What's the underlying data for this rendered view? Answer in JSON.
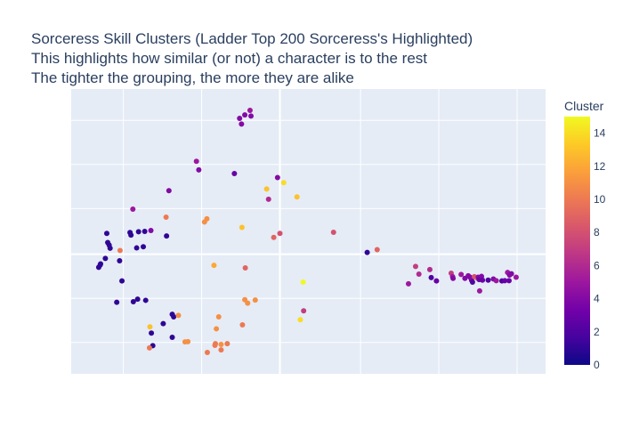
{
  "chart_data": {
    "type": "scatter",
    "title": "Sorceress Skill Clusters (Ladder Top 200 Sorceress's Highlighted)",
    "subtitle_lines": [
      "This highlights how similar (or not) a character is to the rest",
      "The tighter the grouping, the more they are alike"
    ],
    "xlabel": "",
    "ylabel": "",
    "xlim": [
      0,
      100
    ],
    "ylim": [
      0,
      100
    ],
    "grid": true,
    "background": "#e5ecf6",
    "colorbar": {
      "title": "Cluster",
      "min": 0,
      "max": 15,
      "ticks": [
        0,
        2,
        4,
        6,
        8,
        10,
        12,
        14
      ],
      "colorscale": [
        "#0d0887",
        "#46039f",
        "#7201a8",
        "#9c179e",
        "#bd3786",
        "#d8576b",
        "#ed7953",
        "#fb9f3a",
        "#fdca26",
        "#f0f921"
      ]
    },
    "points": [
      {
        "x": 37.7,
        "y": 92.5,
        "c": 5
      },
      {
        "x": 37.9,
        "y": 90.5,
        "c": 4
      },
      {
        "x": 36.6,
        "y": 90.9,
        "c": 4
      },
      {
        "x": 35.9,
        "y": 87.7,
        "c": 4
      },
      {
        "x": 35.5,
        "y": 89.7,
        "c": 4
      },
      {
        "x": 26.4,
        "y": 74.6,
        "c": 5
      },
      {
        "x": 26.9,
        "y": 71.6,
        "c": 4
      },
      {
        "x": 34.4,
        "y": 70.3,
        "c": 3
      },
      {
        "x": 43.5,
        "y": 68.9,
        "c": 4
      },
      {
        "x": 41.2,
        "y": 64.9,
        "c": 13
      },
      {
        "x": 44.8,
        "y": 67.1,
        "c": 14
      },
      {
        "x": 47.6,
        "y": 62.1,
        "c": 13
      },
      {
        "x": 41.6,
        "y": 61.3,
        "c": 6
      },
      {
        "x": 20.6,
        "y": 64.3,
        "c": 4
      },
      {
        "x": 13.0,
        "y": 57.8,
        "c": 5
      },
      {
        "x": 20.0,
        "y": 55.0,
        "c": 10
      },
      {
        "x": 28.6,
        "y": 54.4,
        "c": 11
      },
      {
        "x": 28.1,
        "y": 53.3,
        "c": 11
      },
      {
        "x": 36.0,
        "y": 51.4,
        "c": 13
      },
      {
        "x": 42.7,
        "y": 47.9,
        "c": 9
      },
      {
        "x": 44.0,
        "y": 49.3,
        "c": 8
      },
      {
        "x": 55.3,
        "y": 49.7,
        "c": 8
      },
      {
        "x": 16.8,
        "y": 50.3,
        "c": 4
      },
      {
        "x": 7.5,
        "y": 49.3,
        "c": 1
      },
      {
        "x": 12.4,
        "y": 49.6,
        "c": 1
      },
      {
        "x": 15.5,
        "y": 50.0,
        "c": 1
      },
      {
        "x": 14.2,
        "y": 49.9,
        "c": 1
      },
      {
        "x": 20.1,
        "y": 48.4,
        "c": 1
      },
      {
        "x": 12.6,
        "y": 48.7,
        "c": 1
      },
      {
        "x": 7.7,
        "y": 46.1,
        "c": 1
      },
      {
        "x": 8.0,
        "y": 45.2,
        "c": 1
      },
      {
        "x": 8.2,
        "y": 44.1,
        "c": 1
      },
      {
        "x": 13.8,
        "y": 44.2,
        "c": 1
      },
      {
        "x": 15.2,
        "y": 44.6,
        "c": 1
      },
      {
        "x": 10.3,
        "y": 43.3,
        "c": 10
      },
      {
        "x": 7.2,
        "y": 40.5,
        "c": 1
      },
      {
        "x": 10.2,
        "y": 39.7,
        "c": 1
      },
      {
        "x": 6.2,
        "y": 38.6,
        "c": 1
      },
      {
        "x": 5.8,
        "y": 37.4,
        "c": 1
      },
      {
        "x": 6.1,
        "y": 38.2,
        "c": 1
      },
      {
        "x": 30.1,
        "y": 38.1,
        "c": 12
      },
      {
        "x": 36.7,
        "y": 37.2,
        "c": 9
      },
      {
        "x": 10.7,
        "y": 32.6,
        "c": 1
      },
      {
        "x": 48.9,
        "y": 32.2,
        "c": 15
      },
      {
        "x": 62.4,
        "y": 42.6,
        "c": 1
      },
      {
        "x": 64.5,
        "y": 43.6,
        "c": 9
      },
      {
        "x": 72.6,
        "y": 37.7,
        "c": 7
      },
      {
        "x": 73.3,
        "y": 35.0,
        "c": 6
      },
      {
        "x": 75.6,
        "y": 36.6,
        "c": 6
      },
      {
        "x": 71.1,
        "y": 31.6,
        "c": 5
      },
      {
        "x": 75.9,
        "y": 33.8,
        "c": 2
      },
      {
        "x": 77.0,
        "y": 32.6,
        "c": 3
      },
      {
        "x": 80.1,
        "y": 35.3,
        "c": 7
      },
      {
        "x": 80.4,
        "y": 34.1,
        "c": 5
      },
      {
        "x": 80.5,
        "y": 33.5,
        "c": 4
      },
      {
        "x": 82.2,
        "y": 34.9,
        "c": 5
      },
      {
        "x": 83.0,
        "y": 33.5,
        "c": 4
      },
      {
        "x": 83.7,
        "y": 34.4,
        "c": 4
      },
      {
        "x": 84.4,
        "y": 32.9,
        "c": 3
      },
      {
        "x": 84.1,
        "y": 33.9,
        "c": 4
      },
      {
        "x": 84.6,
        "y": 32.2,
        "c": 2
      },
      {
        "x": 85.0,
        "y": 34.1,
        "c": 8
      },
      {
        "x": 85.6,
        "y": 33.6,
        "c": 9
      },
      {
        "x": 85.8,
        "y": 33.9,
        "c": 4
      },
      {
        "x": 86.0,
        "y": 33.1,
        "c": 3
      },
      {
        "x": 86.5,
        "y": 34.2,
        "c": 4
      },
      {
        "x": 86.1,
        "y": 29.1,
        "c": 5
      },
      {
        "x": 86.7,
        "y": 32.9,
        "c": 3
      },
      {
        "x": 87.9,
        "y": 32.9,
        "c": 2
      },
      {
        "x": 89.0,
        "y": 33.3,
        "c": 4
      },
      {
        "x": 89.6,
        "y": 32.7,
        "c": 5
      },
      {
        "x": 90.8,
        "y": 32.6,
        "c": 2
      },
      {
        "x": 91.4,
        "y": 32.7,
        "c": 3
      },
      {
        "x": 92.0,
        "y": 35.6,
        "c": 5
      },
      {
        "x": 92.4,
        "y": 34.7,
        "c": 4
      },
      {
        "x": 92.8,
        "y": 35.1,
        "c": 4
      },
      {
        "x": 92.3,
        "y": 32.7,
        "c": 3
      },
      {
        "x": 93.8,
        "y": 33.9,
        "c": 5
      },
      {
        "x": 9.6,
        "y": 25.1,
        "c": 1
      },
      {
        "x": 13.1,
        "y": 25.3,
        "c": 1
      },
      {
        "x": 14.0,
        "y": 26.2,
        "c": 1
      },
      {
        "x": 15.7,
        "y": 25.8,
        "c": 1
      },
      {
        "x": 36.6,
        "y": 26.0,
        "c": 11
      },
      {
        "x": 37.2,
        "y": 24.8,
        "c": 11
      },
      {
        "x": 38.8,
        "y": 25.9,
        "c": 11
      },
      {
        "x": 49.0,
        "y": 22.1,
        "c": 7
      },
      {
        "x": 31.1,
        "y": 20.0,
        "c": 11
      },
      {
        "x": 21.3,
        "y": 20.9,
        "c": 1
      },
      {
        "x": 21.6,
        "y": 20.0,
        "c": 1
      },
      {
        "x": 22.6,
        "y": 20.5,
        "c": 11
      },
      {
        "x": 19.4,
        "y": 17.6,
        "c": 1
      },
      {
        "x": 30.6,
        "y": 15.8,
        "c": 11
      },
      {
        "x": 36.1,
        "y": 17.2,
        "c": 10
      },
      {
        "x": 48.3,
        "y": 19.0,
        "c": 14
      },
      {
        "x": 16.6,
        "y": 16.5,
        "c": 13
      },
      {
        "x": 16.9,
        "y": 14.3,
        "c": 1
      },
      {
        "x": 21.3,
        "y": 12.8,
        "c": 1
      },
      {
        "x": 24.0,
        "y": 11.2,
        "c": 11
      },
      {
        "x": 24.6,
        "y": 11.3,
        "c": 11
      },
      {
        "x": 17.2,
        "y": 9.9,
        "c": 1
      },
      {
        "x": 16.5,
        "y": 9.1,
        "c": 10
      },
      {
        "x": 30.3,
        "y": 10.0,
        "c": 10
      },
      {
        "x": 30.4,
        "y": 10.6,
        "c": 10
      },
      {
        "x": 31.6,
        "y": 10.3,
        "c": 11
      },
      {
        "x": 32.9,
        "y": 10.6,
        "c": 10
      },
      {
        "x": 31.6,
        "y": 8.4,
        "c": 10
      },
      {
        "x": 28.7,
        "y": 7.5,
        "c": 10
      }
    ]
  }
}
